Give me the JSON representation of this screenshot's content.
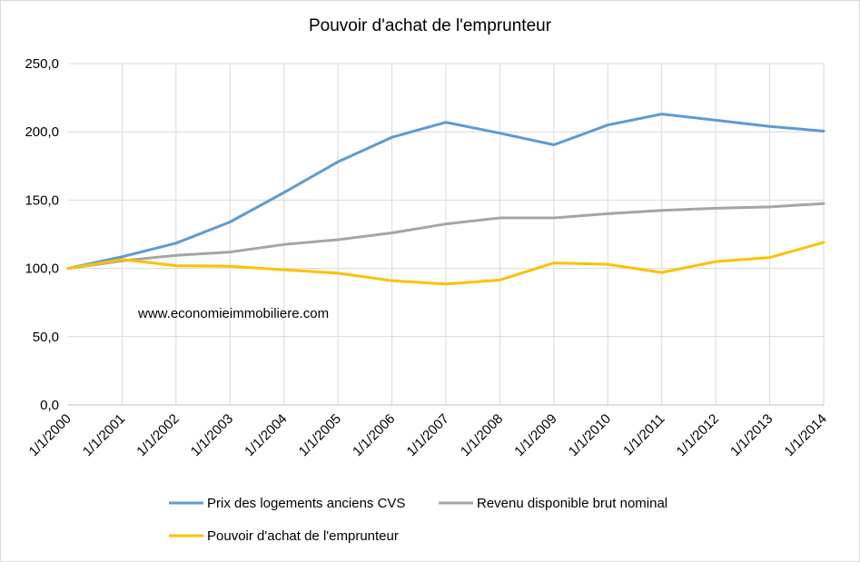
{
  "chart_data": {
    "type": "line",
    "title": "Pouvoir d'achat de l'emprunteur",
    "xlabel": "",
    "ylabel": "",
    "categories": [
      "1/1/2000",
      "1/1/2001",
      "1/1/2002",
      "1/1/2003",
      "1/1/2004",
      "1/1/2005",
      "1/1/2006",
      "1/1/2007",
      "1/1/2008",
      "1/1/2009",
      "1/1/2010",
      "1/1/2011",
      "1/1/2012",
      "1/1/2013",
      "1/1/2014"
    ],
    "y_ticks": [
      "0,0",
      "50,0",
      "100,0",
      "150,0",
      "200,0",
      "250,0"
    ],
    "ylim": [
      0,
      250
    ],
    "grid": true,
    "legend_position": "bottom",
    "annotation": "www.economieimmobiliere.com",
    "series": [
      {
        "name": "Prix des logements anciens CVS",
        "color": "#5b9bd5",
        "values": [
          100,
          108.5,
          118.5,
          134,
          155.5,
          178,
          196,
          207,
          199,
          190.5,
          205,
          213,
          208.5,
          204,
          200.5
        ]
      },
      {
        "name": "Revenu disponible brut nominal",
        "color": "#a5a5a5",
        "values": [
          100,
          105.5,
          109.5,
          112,
          117.5,
          121,
          126,
          132.5,
          137,
          137,
          140,
          142.5,
          144,
          145,
          147.5
        ]
      },
      {
        "name": "Pouvoir d'achat de l'emprunteur",
        "color": "#ffc000",
        "values": [
          100,
          106.5,
          102,
          101.5,
          99,
          96.5,
          91,
          88.5,
          91.5,
          104,
          103,
          97,
          105,
          108,
          119
        ]
      }
    ]
  }
}
